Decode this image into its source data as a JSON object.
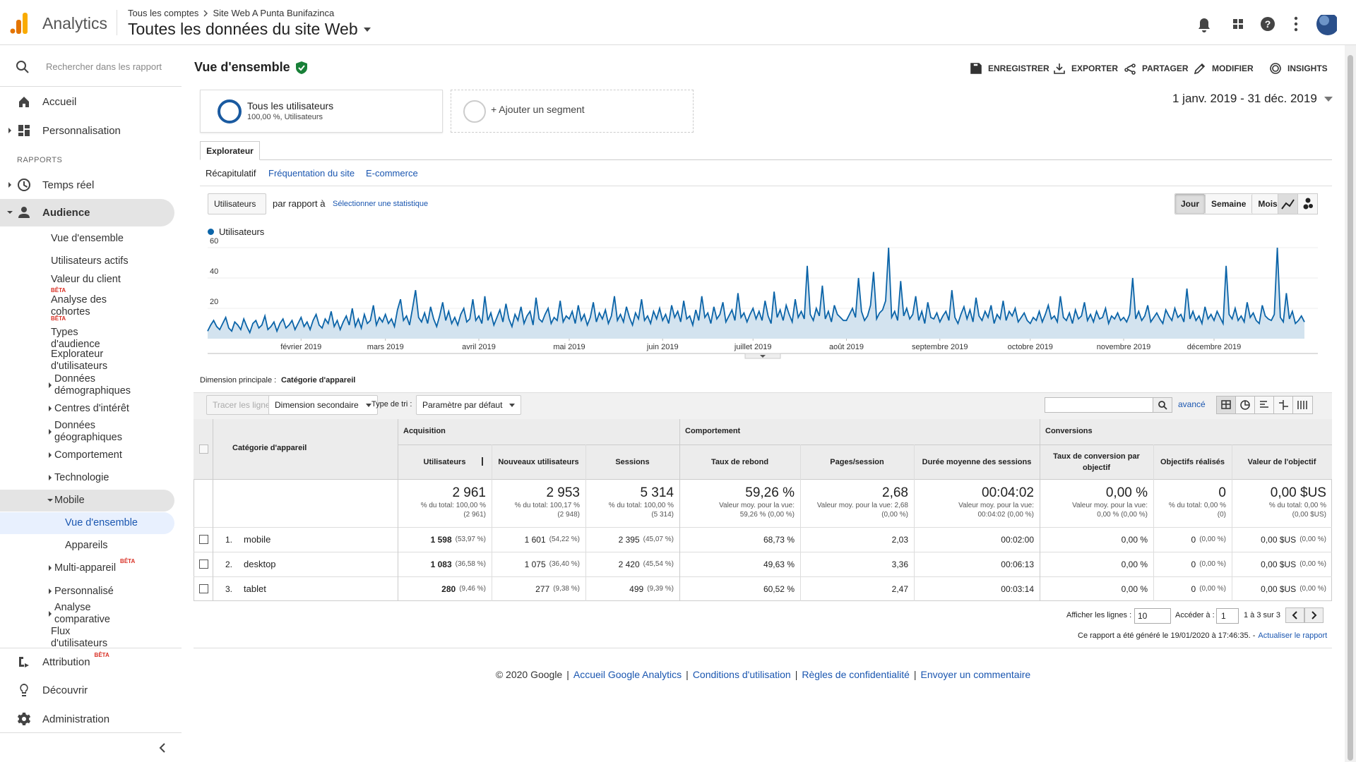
{
  "header": {
    "app": "Analytics",
    "breadcrumb": [
      "Tous les comptes",
      "Site Web A Punta Bunifazinca"
    ],
    "view": "Toutes les données du site Web"
  },
  "sidebar": {
    "search": "Rechercher dans les rapport",
    "section": "RAPPORTS",
    "items": [
      {
        "label": "Accueil"
      },
      {
        "label": "Personnalisation"
      },
      {
        "label": "Temps réel"
      },
      {
        "label": "Audience"
      },
      {
        "label": "Vue d'ensemble"
      },
      {
        "label": "Utilisateurs actifs"
      },
      {
        "label": "Valeur du client",
        "badge": "BÊTA"
      },
      {
        "label": "Analyse des cohortes",
        "badge": "BÊTA"
      },
      {
        "label": "Types d'audience"
      },
      {
        "label": "Explorateur d'utilisateurs"
      },
      {
        "label": "Données démographiques"
      },
      {
        "label": "Centres d'intérêt"
      },
      {
        "label": "Données géographiques"
      },
      {
        "label": "Comportement"
      },
      {
        "label": "Technologie"
      },
      {
        "label": "Mobile"
      },
      {
        "label": "Vue d'ensemble"
      },
      {
        "label": "Appareils"
      },
      {
        "label": "Multi-appareil",
        "badge": "BÊTA"
      },
      {
        "label": "Personnalisé"
      },
      {
        "label": "Analyse comparative"
      },
      {
        "label": "Flux d'utilisateurs"
      },
      {
        "label": "Attribution",
        "badge": "BÊTA"
      },
      {
        "label": "Découvrir"
      },
      {
        "label": "Administration"
      }
    ]
  },
  "page": {
    "title": "Vue d'ensemble",
    "actions": [
      "ENREGISTRER",
      "EXPORTER",
      "PARTAGER",
      "MODIFIER",
      "INSIGHTS"
    ],
    "segments": [
      {
        "name": "Tous les utilisateurs",
        "detail": "100,00 %, Utilisateurs"
      },
      {
        "name": "+ Ajouter un segment"
      }
    ],
    "date_range": "1 janv. 2019 - 31 déc. 2019",
    "tab": "Explorateur",
    "subtabs": [
      "Récapitulatif",
      "Fréquentation du site",
      "E-commerce"
    ],
    "metric": "Utilisateurs",
    "compare": "par rapport à",
    "select_metric": "Sélectionner une statistique",
    "granularity": [
      "Jour",
      "Semaine",
      "Mois"
    ]
  },
  "chart_data": {
    "type": "line",
    "ylim": [
      0,
      60
    ],
    "yticks": [
      20,
      40,
      60
    ],
    "grid": true,
    "xticks": [
      {
        "value": 31,
        "label": "février 2019"
      },
      {
        "value": 59,
        "label": "mars 2019"
      },
      {
        "value": 90,
        "label": "avril 2019"
      },
      {
        "value": 120,
        "label": "mai 2019"
      },
      {
        "value": 151,
        "label": "juin 2019"
      },
      {
        "value": 181,
        "label": "juillet 2019"
      },
      {
        "value": 212,
        "label": "août 2019"
      },
      {
        "value": 243,
        "label": "septembre 2019"
      },
      {
        "value": 273,
        "label": "octobre 2019"
      },
      {
        "value": 304,
        "label": "novembre 2019"
      },
      {
        "value": 334,
        "label": "décembre 2019"
      }
    ],
    "series": [
      {
        "name": "Utilisateurs",
        "color": "#0b64a8",
        "values": [
          5,
          9,
          12,
          8,
          6,
          10,
          14,
          7,
          5,
          11,
          9,
          6,
          13,
          8,
          4,
          10,
          12,
          7,
          9,
          15,
          6,
          8,
          11,
          5,
          10,
          13,
          7,
          9,
          12,
          6,
          10,
          14,
          8,
          11,
          6,
          12,
          16,
          9,
          7,
          13,
          10,
          18,
          8,
          12,
          6,
          11,
          15,
          9,
          20,
          8,
          13,
          7,
          16,
          10,
          12,
          22,
          9,
          14,
          11,
          16,
          10,
          13,
          8,
          19,
          26,
          12,
          15,
          9,
          20,
          32,
          14,
          11,
          17,
          10,
          21,
          13,
          8,
          15,
          24,
          12,
          18,
          10,
          14,
          9,
          16,
          20,
          11,
          13,
          26,
          12,
          15,
          10,
          28,
          12,
          17,
          9,
          14,
          19,
          11,
          23,
          13,
          8,
          16,
          12,
          21,
          10,
          15,
          18,
          9,
          27,
          13,
          11,
          16,
          20,
          10,
          14,
          12,
          25,
          11,
          15,
          13,
          18,
          10,
          22,
          12,
          16,
          9,
          14,
          24,
          11,
          17,
          13,
          19,
          10,
          15,
          28,
          12,
          16,
          11,
          21,
          14,
          9,
          17,
          13,
          26,
          12,
          15,
          10,
          18,
          13,
          20,
          12,
          16,
          10,
          22,
          14,
          18,
          11,
          25,
          13,
          15,
          9,
          19,
          12,
          28,
          14,
          17,
          10,
          21,
          13,
          16,
          24,
          11,
          15,
          19,
          12,
          30,
          14,
          17,
          11,
          16,
          20,
          13,
          18,
          12,
          25,
          15,
          10,
          31,
          14,
          19,
          12,
          22,
          16,
          11,
          26,
          14,
          18,
          13,
          48,
          16,
          12,
          20,
          15,
          35,
          13,
          18,
          11,
          22,
          16,
          14,
          12,
          12,
          16,
          20,
          14,
          40,
          18,
          12,
          15,
          22,
          44,
          13,
          17,
          19,
          25,
          60,
          14,
          18,
          12,
          38,
          15,
          20,
          13,
          16,
          28,
          12,
          18,
          10,
          24,
          14,
          13,
          17,
          11,
          15,
          18,
          12,
          32,
          14,
          10,
          16,
          21,
          13,
          19,
          11,
          27,
          15,
          12,
          18,
          14,
          22,
          10,
          16,
          13,
          25,
          12,
          18,
          15,
          20,
          11,
          14,
          17,
          12,
          10,
          14,
          12,
          18,
          11,
          16,
          22,
          13,
          15,
          11,
          28,
          14,
          12,
          17,
          10,
          19,
          13,
          15,
          24,
          12,
          16,
          11,
          18,
          13,
          14,
          20,
          10,
          15,
          13,
          17,
          12,
          14,
          11,
          16,
          40,
          13,
          18,
          12,
          15,
          22,
          11,
          14,
          17,
          13,
          10,
          19,
          15,
          12,
          20,
          14,
          16,
          11,
          33,
          13,
          18,
          12,
          15,
          10,
          21,
          13,
          16,
          12,
          18,
          14,
          10,
          48,
          16,
          13,
          20,
          12,
          15,
          11,
          24,
          14,
          17,
          12,
          10,
          22,
          15,
          13,
          12,
          16,
          60,
          14,
          11,
          30,
          13,
          18,
          10,
          12,
          15,
          11
        ]
      }
    ]
  },
  "table": {
    "primary_dimension_label": "Dimension principale :",
    "primary_dimension": "Catégorie d'appareil",
    "toolbar": {
      "plot_rows": "Tracer les lignes",
      "secondary": "Dimension secondaire",
      "sort_label": "Type de tri :",
      "sort": "Paramètre par défaut",
      "advanced": "avancé"
    },
    "groups": [
      "Acquisition",
      "Comportement",
      "Conversions"
    ],
    "dimension_header": "Catégorie d'appareil",
    "columns": [
      "Utilisateurs",
      "Nouveaux utilisateurs",
      "Sessions",
      "Taux de rebond",
      "Pages/session",
      "Durée moyenne des sessions",
      "Taux de conversion par objectif",
      "Objectifs réalisés",
      "Valeur de l'objectif"
    ],
    "totals": [
      {
        "value": "2 961",
        "note": [
          "% du total: 100,00 %",
          "(2 961)"
        ]
      },
      {
        "value": "2 953",
        "note": [
          "% du total: 100,17 %",
          "(2 948)"
        ]
      },
      {
        "value": "5 314",
        "note": [
          "% du total: 100,00 %",
          "(5 314)"
        ]
      },
      {
        "value": "59,26 %",
        "note": [
          "Valeur moy. pour la vue:",
          "59,26 % (0,00 %)"
        ]
      },
      {
        "value": "2,68",
        "note": [
          "Valeur moy. pour la vue: 2,68",
          "(0,00 %)"
        ]
      },
      {
        "value": "00:04:02",
        "note": [
          "Valeur moy. pour la vue:",
          "00:04:02 (0,00 %)"
        ]
      },
      {
        "value": "0,00 %",
        "note": [
          "Valeur moy. pour la vue:",
          "0,00 % (0,00 %)"
        ]
      },
      {
        "value": "0",
        "note": [
          "% du total: 0,00 %",
          "(0)"
        ]
      },
      {
        "value": "0,00 $US",
        "note": [
          "% du total: 0,00 %",
          "(0,00 $US)"
        ]
      }
    ],
    "rows": [
      {
        "rank": "1.",
        "name": "mobile",
        "cells": [
          [
            "1 598",
            "(53,97 %)"
          ],
          [
            "1 601",
            "(54,22 %)"
          ],
          [
            "2 395",
            "(45,07 %)"
          ],
          [
            "68,73 %"
          ],
          [
            "2,03"
          ],
          [
            "00:02:00"
          ],
          [
            "0,00 %"
          ],
          [
            "0",
            "(0,00 %)"
          ],
          [
            "0,00 $US",
            "(0,00 %)"
          ]
        ]
      },
      {
        "rank": "2.",
        "name": "desktop",
        "cells": [
          [
            "1 083",
            "(36,58 %)"
          ],
          [
            "1 075",
            "(36,40 %)"
          ],
          [
            "2 420",
            "(45,54 %)"
          ],
          [
            "49,63 %"
          ],
          [
            "3,36"
          ],
          [
            "00:06:13"
          ],
          [
            "0,00 %"
          ],
          [
            "0",
            "(0,00 %)"
          ],
          [
            "0,00 $US",
            "(0,00 %)"
          ]
        ]
      },
      {
        "rank": "3.",
        "name": "tablet",
        "cells": [
          [
            "280",
            "(9,46 %)"
          ],
          [
            "277",
            "(9,38 %)"
          ],
          [
            "499",
            "(9,39 %)"
          ],
          [
            "60,52 %"
          ],
          [
            "2,47"
          ],
          [
            "00:03:14"
          ],
          [
            "0,00 %"
          ],
          [
            "0",
            "(0,00 %)"
          ],
          [
            "0,00 $US",
            "(0,00 %)"
          ]
        ]
      }
    ]
  },
  "pagination": {
    "show_rows": "Afficher les lignes :",
    "rows": "10",
    "goto": "Accéder à :",
    "page": "1",
    "range": "1 à 3 sur 3"
  },
  "report_note": "Ce rapport a été généré le 19/01/2020 à 17:46:35. -",
  "refresh": "Actualiser le rapport",
  "footer": {
    "separator": "|",
    "links": [
      "© 2020 Google",
      "Accueil Google Analytics",
      "Conditions d'utilisation",
      "Règles de confidentialité",
      "Envoyer un commentaire"
    ]
  }
}
